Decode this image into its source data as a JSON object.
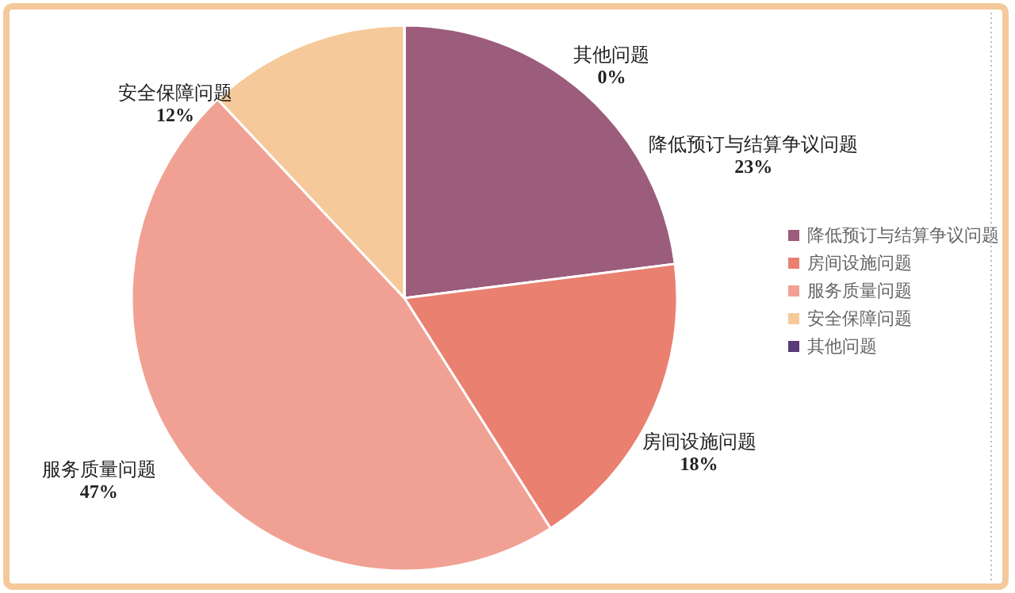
{
  "chart_data": {
    "type": "pie",
    "categories": [
      "降低预订与结算争议问题",
      "房间设施问题",
      "服务质量问题",
      "安全保障问题",
      "其他问题"
    ],
    "values": [
      23,
      18,
      47,
      12,
      0
    ],
    "colors": [
      "#9c5c7b",
      "#ea8070",
      "#f1a193",
      "#f6c99a",
      "#5b3a78"
    ],
    "value_labels": [
      "23%",
      "18%",
      "47%",
      "12%",
      "0%"
    ],
    "legend": "right"
  }
}
